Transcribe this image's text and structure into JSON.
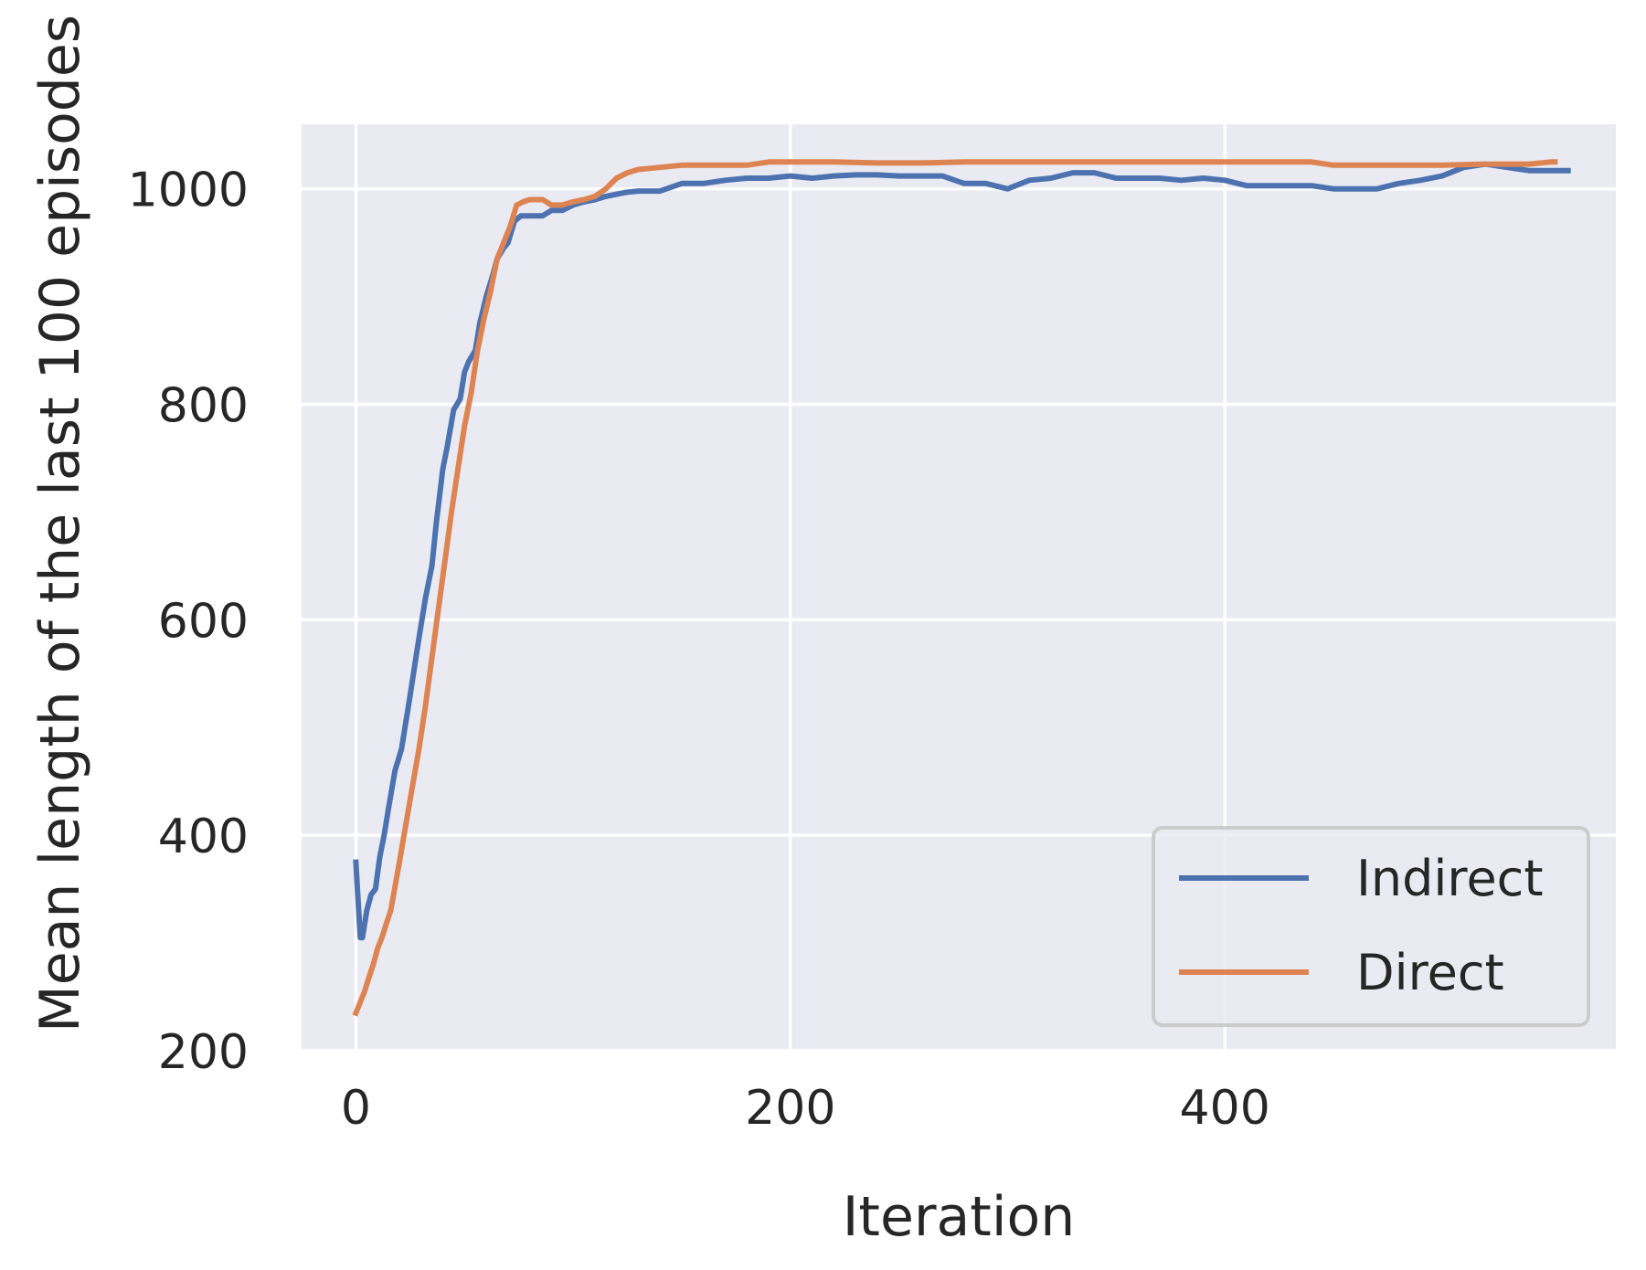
{
  "chart_data": {
    "type": "line",
    "xlabel": "Iteration",
    "ylabel": "Mean length of the last 100 episodes",
    "xlim": [
      -25,
      580
    ],
    "ylim": [
      200,
      1060
    ],
    "xticks": [
      0,
      200,
      400
    ],
    "yticks": [
      200,
      400,
      600,
      800,
      1000
    ],
    "x_tick_labels": [
      "0",
      "200",
      "400"
    ],
    "y_tick_labels": [
      "200",
      "400",
      "600",
      "800",
      "1000"
    ],
    "grid": true,
    "legend_position": "lower-right",
    "colors": {
      "background": "#eaeaf2",
      "grid": "#ffffff",
      "text": "#262626"
    },
    "series": [
      {
        "name": "Indirect",
        "color": "#4c72b0",
        "x": [
          0,
          2,
          3,
          5,
          7,
          9,
          11,
          13,
          15,
          18,
          21,
          25,
          28,
          30,
          32,
          35,
          37,
          40,
          42,
          45,
          48,
          50,
          52,
          55,
          57,
          60,
          63,
          65,
          68,
          70,
          73,
          76,
          80,
          83,
          86,
          90,
          95,
          100,
          105,
          110,
          115,
          120,
          125,
          130,
          140,
          150,
          160,
          170,
          180,
          190,
          200,
          210,
          220,
          230,
          240,
          250,
          260,
          270,
          280,
          290,
          300,
          310,
          320,
          330,
          340,
          350,
          360,
          370,
          380,
          390,
          400,
          410,
          420,
          430,
          440,
          450,
          460,
          470,
          480,
          490,
          500,
          510,
          520,
          530,
          540,
          550,
          558
        ],
        "y": [
          375,
          305,
          305,
          330,
          345,
          350,
          380,
          400,
          425,
          460,
          480,
          530,
          570,
          595,
          620,
          650,
          690,
          740,
          760,
          795,
          805,
          830,
          840,
          850,
          875,
          900,
          920,
          935,
          945,
          950,
          970,
          975,
          975,
          975,
          975,
          980,
          980,
          985,
          988,
          990,
          993,
          995,
          997,
          998,
          998,
          1005,
          1005,
          1008,
          1010,
          1010,
          1012,
          1010,
          1012,
          1013,
          1013,
          1012,
          1012,
          1012,
          1005,
          1005,
          1000,
          1008,
          1010,
          1015,
          1015,
          1010,
          1010,
          1010,
          1008,
          1010,
          1008,
          1003,
          1003,
          1003,
          1003,
          1000,
          1000,
          1000,
          1005,
          1008,
          1012,
          1020,
          1023,
          1020,
          1017,
          1017,
          1017
        ]
      },
      {
        "name": "Direct",
        "color": "#dd8452",
        "x": [
          0,
          2,
          4,
          6,
          8,
          10,
          12,
          14,
          16,
          18,
          20,
          23,
          26,
          29,
          32,
          35,
          38,
          41,
          44,
          47,
          50,
          53,
          56,
          59,
          62,
          65,
          68,
          71,
          74,
          77,
          80,
          83,
          86,
          90,
          95,
          100,
          105,
          110,
          115,
          120,
          125,
          130,
          140,
          150,
          160,
          170,
          180,
          190,
          200,
          210,
          220,
          240,
          260,
          280,
          300,
          320,
          340,
          360,
          380,
          400,
          420,
          440,
          450,
          460,
          480,
          500,
          520,
          540,
          550,
          552
        ],
        "y": [
          235,
          245,
          255,
          268,
          280,
          295,
          305,
          318,
          330,
          352,
          375,
          410,
          445,
          480,
          520,
          565,
          610,
          655,
          700,
          740,
          780,
          810,
          850,
          880,
          905,
          935,
          950,
          965,
          985,
          988,
          990,
          990,
          990,
          985,
          985,
          988,
          990,
          993,
          1000,
          1010,
          1015,
          1018,
          1020,
          1022,
          1022,
          1022,
          1022,
          1025,
          1025,
          1025,
          1025,
          1024,
          1024,
          1025,
          1025,
          1025,
          1025,
          1025,
          1025,
          1025,
          1025,
          1025,
          1022,
          1022,
          1022,
          1022,
          1023,
          1023,
          1025,
          1025
        ]
      }
    ]
  }
}
